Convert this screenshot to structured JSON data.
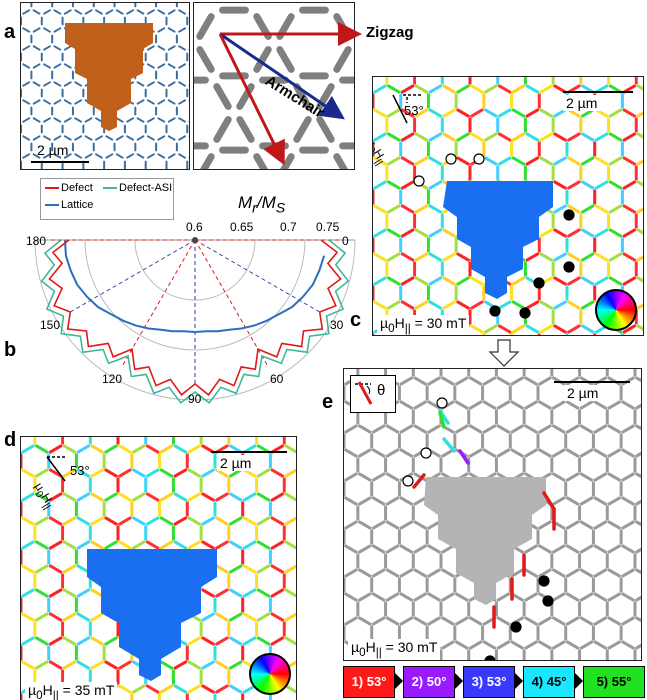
{
  "panel_letters": {
    "a": "a",
    "b": "b",
    "c": "c",
    "d": "d",
    "e": "e"
  },
  "panel_a": {
    "scalebar": "2 µm",
    "directions": {
      "zigzag": "Zigzag",
      "armchair": "Armchair"
    },
    "colors": {
      "defect_fill": "#c0601a",
      "lattice": "#3a6ea0",
      "arrow_red": "#c01818",
      "arrow_blue": "#1a2a8c",
      "bars": "#7f7f7f"
    }
  },
  "panel_b": {
    "title_html": "M<sub>r</sub>/M<sub>S</sub>",
    "radial_ticks": [
      "0.6",
      "0.65",
      "0.7",
      "0.75"
    ],
    "angle_ticks": {
      "a0": "0",
      "a30": "30",
      "a60": "60",
      "a90": "90",
      "a120": "120",
      "a150": "150",
      "a180": "180"
    },
    "legend": {
      "defect": "Defect",
      "defect_asi": "Defect-ASI",
      "lattice": "Lattice"
    },
    "colors": {
      "defect": "#e01a1a",
      "defect_asi": "#3db89a",
      "lattice": "#2a6fc0"
    }
  },
  "panel_c": {
    "scalebar": "2 µm",
    "angle": "53°",
    "field_html": "µ<sub>0</sub>H<sub>||</sub> = 30 mT",
    "axis_label_html": "µ<sub>0</sub>H<sub>||</sub>"
  },
  "panel_d": {
    "scalebar": "2 µm",
    "angle": "53°",
    "field_html": "µ<sub>0</sub>H<sub>||</sub> = 35 mT",
    "axis_label_html": "µ<sub>0</sub>H<sub>||</sub>"
  },
  "panel_e": {
    "scalebar": "2 µm",
    "theta": "θ",
    "field_html": "µ<sub>0</sub>H<sub>||</sub> = 30 mT"
  },
  "sequence": [
    {
      "label": "1) 53°",
      "color": "#ff1a1a",
      "text_color": "#ffffff"
    },
    {
      "label": "2) 50°",
      "color": "#9a1aff",
      "text_color": "#ffffff"
    },
    {
      "label": "3) 53°",
      "color": "#3a3aff",
      "text_color": "#ffffff"
    },
    {
      "label": "4) 45°",
      "color": "#1ae6ff",
      "text_color": "#000000"
    },
    {
      "label": "5) 55°",
      "color": "#22e022",
      "text_color": "#000000"
    }
  ]
}
